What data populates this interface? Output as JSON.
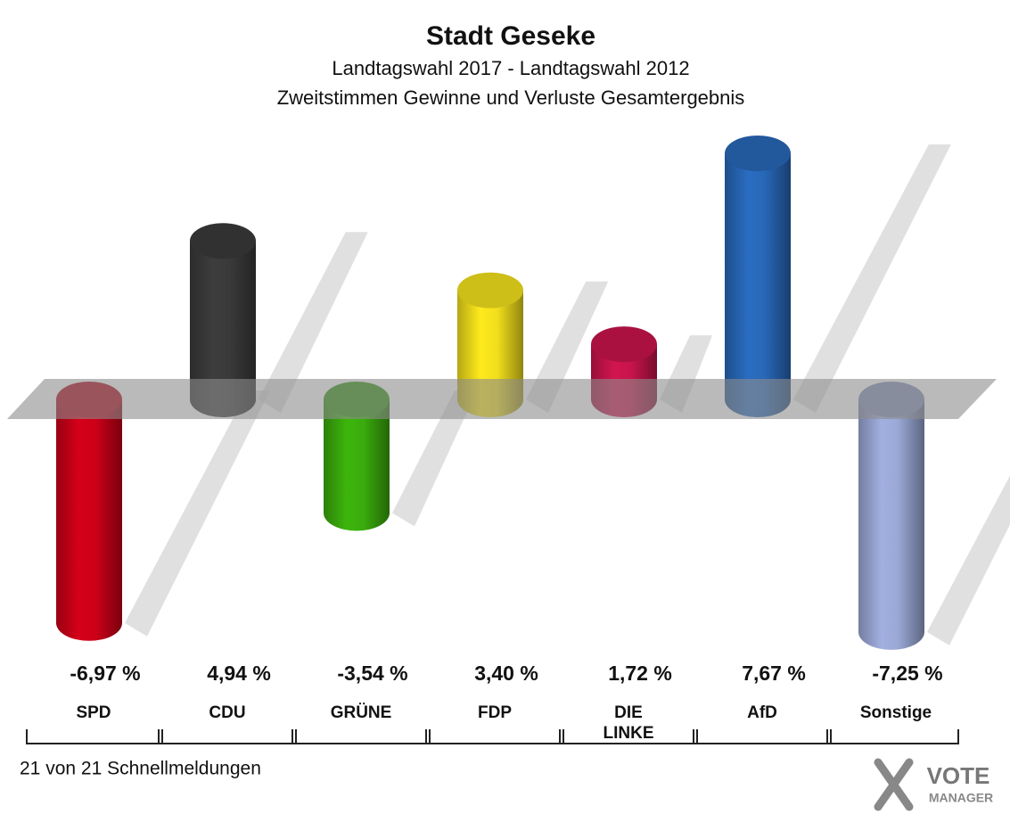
{
  "chart_data": {
    "type": "bar",
    "title": "Stadt Geseke",
    "subtitle": [
      "Landtagswahl 2017 - Landtagswahl 2012",
      "Zweitstimmen Gewinne und Verluste Gesamtergebnis"
    ],
    "categories": [
      "SPD",
      "CDU",
      "GRÜNE",
      "FDP",
      "DIE LINKE",
      "AfD",
      "Sonstige"
    ],
    "values": [
      -6.97,
      4.94,
      -3.54,
      3.4,
      1.72,
      7.67,
      -7.25
    ],
    "value_labels": [
      "-6,97 %",
      "4,94 %",
      "-3,54 %",
      "3,40 %",
      "1,72 %",
      "7,67 %",
      "-7,25 %"
    ],
    "colors": [
      "#cc0018",
      "#3a3a3a",
      "#3aac0c",
      "#f2df1c",
      "#c8144c",
      "#2868b8",
      "#9aa8d6"
    ],
    "footer": "21 von 21 Schnellmeldungen",
    "logo": [
      "VOTE",
      "MANAGER"
    ]
  }
}
